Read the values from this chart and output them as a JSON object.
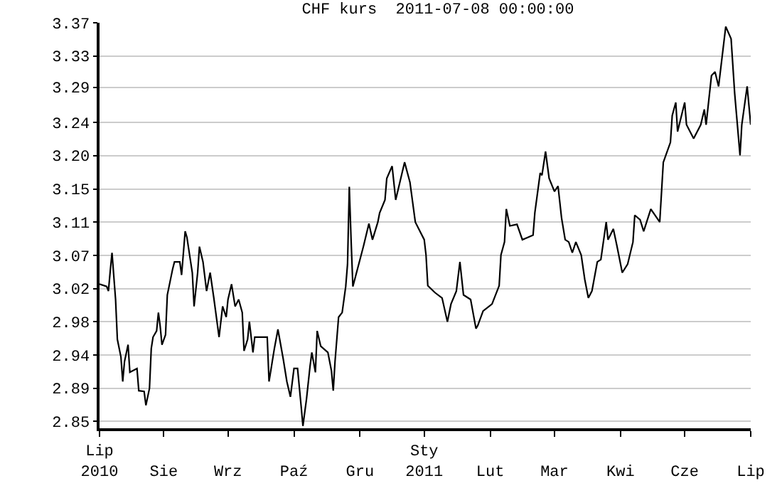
{
  "chart_data": {
    "type": "line",
    "title": "CHF kurs  2011-07-08 00:00:00",
    "x": [
      "2010-07-08",
      "2010-07-12",
      "2010-07-13",
      "2010-07-14",
      "2010-07-15",
      "2010-07-17",
      "2010-07-18",
      "2010-07-20",
      "2010-07-21",
      "2010-07-22",
      "2010-07-24",
      "2010-07-25",
      "2010-07-29",
      "2010-07-30",
      "2010-08-02",
      "2010-08-03",
      "2010-08-05",
      "2010-08-06",
      "2010-08-07",
      "2010-08-09",
      "2010-08-10",
      "2010-08-11",
      "2010-08-12",
      "2010-08-14",
      "2010-08-15",
      "2010-08-18",
      "2010-08-19",
      "2010-08-22",
      "2010-08-23",
      "2010-08-25",
      "2010-08-26",
      "2010-08-29",
      "2010-08-30",
      "2010-09-01",
      "2010-09-02",
      "2010-09-04",
      "2010-09-06",
      "2010-09-08",
      "2010-09-10",
      "2010-09-13",
      "2010-09-15",
      "2010-09-17",
      "2010-09-18",
      "2010-09-20",
      "2010-09-22",
      "2010-09-24",
      "2010-09-26",
      "2010-09-27",
      "2010-09-29",
      "2010-09-30",
      "2010-10-02",
      "2010-10-03",
      "2010-10-10",
      "2010-10-11",
      "2010-10-14",
      "2010-10-16",
      "2010-10-19",
      "2010-10-21",
      "2010-10-23",
      "2010-10-25",
      "2010-10-27",
      "2010-10-29",
      "2010-10-30",
      "2010-11-01",
      "2010-11-03",
      "2010-11-04",
      "2010-11-06",
      "2010-11-07",
      "2010-11-09",
      "2010-11-13",
      "2010-11-15",
      "2010-11-16",
      "2010-11-17",
      "2010-11-19",
      "2010-11-21",
      "2010-11-23",
      "2010-11-24",
      "2010-11-25",
      "2010-11-26",
      "2010-11-27",
      "2010-12-03",
      "2010-12-06",
      "2010-12-08",
      "2010-12-11",
      "2010-12-12",
      "2010-12-15",
      "2010-12-16",
      "2010-12-19",
      "2010-12-21",
      "2010-12-26",
      "2010-12-29",
      "2011-01-01",
      "2011-01-06",
      "2011-01-07",
      "2011-01-08",
      "2011-01-12",
      "2011-01-16",
      "2011-01-19",
      "2011-01-21",
      "2011-01-24",
      "2011-01-26",
      "2011-01-28",
      "2011-02-01",
      "2011-02-04",
      "2011-02-05",
      "2011-02-08",
      "2011-02-13",
      "2011-02-17",
      "2011-02-18",
      "2011-02-20",
      "2011-02-21",
      "2011-02-23",
      "2011-02-27",
      "2011-03-02",
      "2011-03-08",
      "2011-03-09",
      "2011-03-12",
      "2011-03-13",
      "2011-03-15",
      "2011-03-17",
      "2011-03-20",
      "2011-03-22",
      "2011-03-24",
      "2011-03-26",
      "2011-03-28",
      "2011-03-30",
      "2011-04-01",
      "2011-04-04",
      "2011-04-06",
      "2011-04-08",
      "2011-04-10",
      "2011-04-13",
      "2011-04-15",
      "2011-04-18",
      "2011-04-19",
      "2011-04-22",
      "2011-04-24",
      "2011-04-27",
      "2011-04-30",
      "2011-05-03",
      "2011-05-04",
      "2011-05-07",
      "2011-05-09",
      "2011-05-13",
      "2011-05-18",
      "2011-05-20",
      "2011-05-24",
      "2011-05-25",
      "2011-05-27",
      "2011-05-28",
      "2011-06-01",
      "2011-06-02",
      "2011-06-06",
      "2011-06-10",
      "2011-06-12",
      "2011-06-13",
      "2011-06-16",
      "2011-06-18",
      "2011-06-20",
      "2011-06-24",
      "2011-06-27",
      "2011-06-29",
      "2011-07-02",
      "2011-07-03",
      "2011-07-06",
      "2011-07-08"
    ],
    "series": [
      {
        "color": "#000000",
        "values": [
          3.029,
          3.026,
          3.02,
          3.046,
          3.07,
          3.009,
          2.957,
          2.934,
          2.902,
          2.928,
          2.95,
          2.914,
          2.919,
          2.89,
          2.889,
          2.871,
          2.893,
          2.945,
          2.96,
          2.968,
          2.992,
          2.974,
          2.95,
          2.963,
          3.015,
          3.049,
          3.058,
          3.058,
          3.041,
          3.098,
          3.09,
          3.044,
          3.0,
          3.044,
          3.078,
          3.058,
          3.02,
          3.044,
          3.012,
          2.96,
          3.0,
          2.986,
          3.009,
          3.029,
          3.0,
          3.009,
          2.992,
          2.942,
          2.957,
          2.98,
          2.94,
          2.96,
          2.96,
          2.902,
          2.945,
          2.97,
          2.931,
          2.902,
          2.882,
          2.919,
          2.919,
          2.87,
          2.844,
          2.879,
          2.922,
          2.94,
          2.914,
          2.968,
          2.948,
          2.94,
          2.916,
          2.89,
          2.928,
          2.986,
          2.992,
          3.026,
          3.055,
          3.156,
          3.087,
          3.026,
          3.079,
          3.108,
          3.087,
          3.11,
          3.122,
          3.139,
          3.167,
          3.183,
          3.139,
          3.188,
          3.162,
          3.11,
          3.087,
          3.067,
          3.027,
          3.018,
          3.011,
          2.98,
          3.003,
          3.02,
          3.058,
          3.015,
          3.009,
          2.971,
          2.975,
          2.994,
          3.003,
          3.027,
          3.067,
          3.084,
          3.127,
          3.105,
          3.107,
          3.087,
          3.093,
          3.122,
          3.174,
          3.171,
          3.202,
          3.167,
          3.15,
          3.157,
          3.115,
          3.087,
          3.084,
          3.07,
          3.084,
          3.067,
          3.035,
          3.011,
          3.02,
          3.058,
          3.061,
          3.11,
          3.087,
          3.101,
          3.079,
          3.044,
          3.055,
          3.084,
          3.119,
          3.113,
          3.098,
          3.127,
          3.11,
          3.188,
          3.214,
          3.249,
          3.266,
          3.228,
          3.266,
          3.237,
          3.219,
          3.237,
          3.257,
          3.237,
          3.301,
          3.306,
          3.287,
          3.365,
          3.349,
          3.278,
          3.197,
          3.237,
          3.287,
          3.237
        ]
      }
    ],
    "xlim": [
      "2010-07-08",
      "2011-07-08"
    ],
    "xticks": [
      {
        "value": "2010-07-08",
        "label": "Lip\n2010"
      },
      {
        "value": "2010-08-13",
        "label": "Sie"
      },
      {
        "value": "2010-09-18",
        "label": "Wrz"
      },
      {
        "value": "2010-10-25",
        "label": "Paź"
      },
      {
        "value": "2010-12-01",
        "label": "Gru"
      },
      {
        "value": "2011-01-06",
        "label": "Sty\n2011"
      },
      {
        "value": "2011-02-12",
        "label": "Lut"
      },
      {
        "value": "2011-03-20",
        "label": "Mar"
      },
      {
        "value": "2011-04-26",
        "label": "Kwi"
      },
      {
        "value": "2011-06-01",
        "label": "Cze"
      },
      {
        "value": "2011-07-08",
        "label": "Lip"
      }
    ],
    "ylim": [
      2.841,
      3.37
    ],
    "yticks": [
      {
        "value": 2.85,
        "label": "2.85"
      },
      {
        "value": 2.8933,
        "label": "2.89"
      },
      {
        "value": 2.9367,
        "label": "2.94"
      },
      {
        "value": 2.98,
        "label": "2.98"
      },
      {
        "value": 3.0233,
        "label": "3.02"
      },
      {
        "value": 3.0667,
        "label": "3.07"
      },
      {
        "value": 3.11,
        "label": "3.11"
      },
      {
        "value": 3.1533,
        "label": "3.15"
      },
      {
        "value": 3.1967,
        "label": "3.20"
      },
      {
        "value": 3.24,
        "label": "3.24"
      },
      {
        "value": 3.286,
        "label": "3.29"
      },
      {
        "value": 3.3267,
        "label": "3.33"
      },
      {
        "value": 3.37,
        "label": "3.37"
      }
    ],
    "grid": "y",
    "marker": "none",
    "line_style": "solid"
  }
}
